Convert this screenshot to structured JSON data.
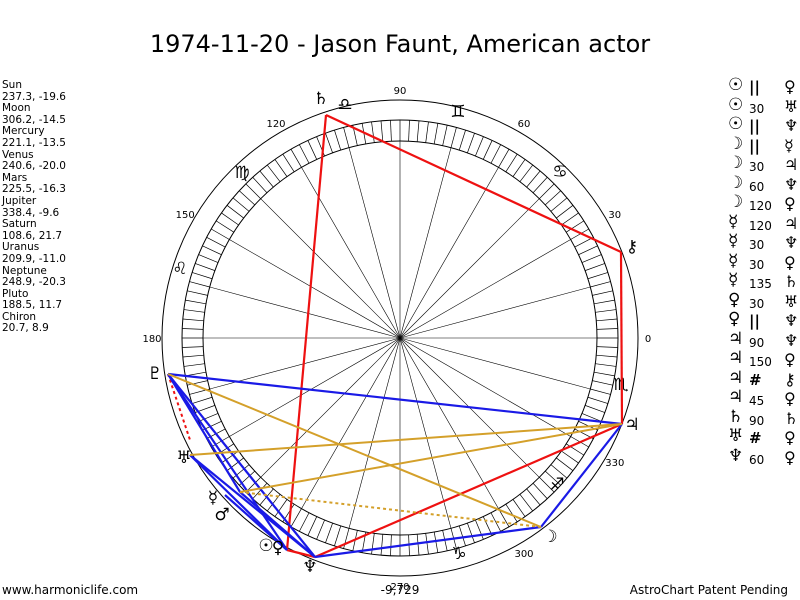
{
  "title": "1974-11-20 - Jason Faunt, American actor",
  "positions": [
    {
      "name": "Sun",
      "value": "237.3, -19.6"
    },
    {
      "name": "Moon",
      "value": "306.2, -14.5"
    },
    {
      "name": "Mercury",
      "value": "221.1, -13.5"
    },
    {
      "name": "Venus",
      "value": "240.6, -20.0"
    },
    {
      "name": "Mars",
      "value": "225.5, -16.3"
    },
    {
      "name": "Jupiter",
      "value": "338.4, -9.6"
    },
    {
      "name": "Saturn",
      "value": "108.6, 21.7"
    },
    {
      "name": "Uranus",
      "value": "209.9, -11.0"
    },
    {
      "name": "Neptune",
      "value": "248.9, -20.3"
    },
    {
      "name": "Pluto",
      "value": "188.5, 11.7"
    },
    {
      "name": "Chiron",
      "value": "20.7, 8.9"
    }
  ],
  "aspects": [
    {
      "p1": "☉",
      "asp": "||",
      "p2": "♀"
    },
    {
      "p1": "☉",
      "asp": "30",
      "p2": "♅"
    },
    {
      "p1": "☉",
      "asp": "||",
      "p2": "♆"
    },
    {
      "p1": "☽",
      "asp": "||",
      "p2": "☿"
    },
    {
      "p1": "☽",
      "asp": "30",
      "p2": "♃"
    },
    {
      "p1": "☽",
      "asp": "60",
      "p2": "♆"
    },
    {
      "p1": "☽",
      "asp": "120",
      "p2": "♀"
    },
    {
      "p1": "☿",
      "asp": "120",
      "p2": "♃"
    },
    {
      "p1": "☿",
      "asp": "30",
      "p2": "♆"
    },
    {
      "p1": "☿",
      "asp": "30",
      "p2": "♀"
    },
    {
      "p1": "☿",
      "asp": "135",
      "p2": "♄"
    },
    {
      "p1": "♀",
      "asp": "30",
      "p2": "♅"
    },
    {
      "p1": "♀",
      "asp": "||",
      "p2": "♆"
    },
    {
      "p1": "♃",
      "asp": "90",
      "p2": "♆"
    },
    {
      "p1": "♃",
      "asp": "150",
      "p2": "♀"
    },
    {
      "p1": "♃",
      "asp": "#",
      "p2": "⚷"
    },
    {
      "p1": "♃",
      "asp": "45",
      "p2": "♀"
    },
    {
      "p1": "♄",
      "asp": "90",
      "p2": "♄"
    },
    {
      "p1": "♅",
      "asp": "#",
      "p2": "♀"
    },
    {
      "p1": "♆",
      "asp": "60",
      "p2": "♀"
    }
  ],
  "wheel": {
    "degree_labels": [
      "0",
      "30",
      "60",
      "90",
      "120",
      "150",
      "180",
      "270",
      "300",
      "330"
    ],
    "sign_glyphs": [
      "♊",
      "♋",
      "♌",
      "♍",
      "♎",
      "♏",
      "♐",
      "♑"
    ],
    "planet_glyphs": {
      "sun": "☉",
      "moon": "☽",
      "mercury": "☿",
      "venus": "♀",
      "mars": "♂",
      "jupiter": "♃",
      "saturn": "♄",
      "uranus": "♅",
      "neptune": "♆",
      "pluto": "♇",
      "chiron": "⚷"
    },
    "colors": {
      "red": "#ee1111",
      "blue": "#1a1ae6",
      "gold": "#d4a02a"
    }
  },
  "footer": {
    "left": "www.harmoniclife.com",
    "center": "-9,729",
    "right": "AstroChart Patent Pending"
  }
}
